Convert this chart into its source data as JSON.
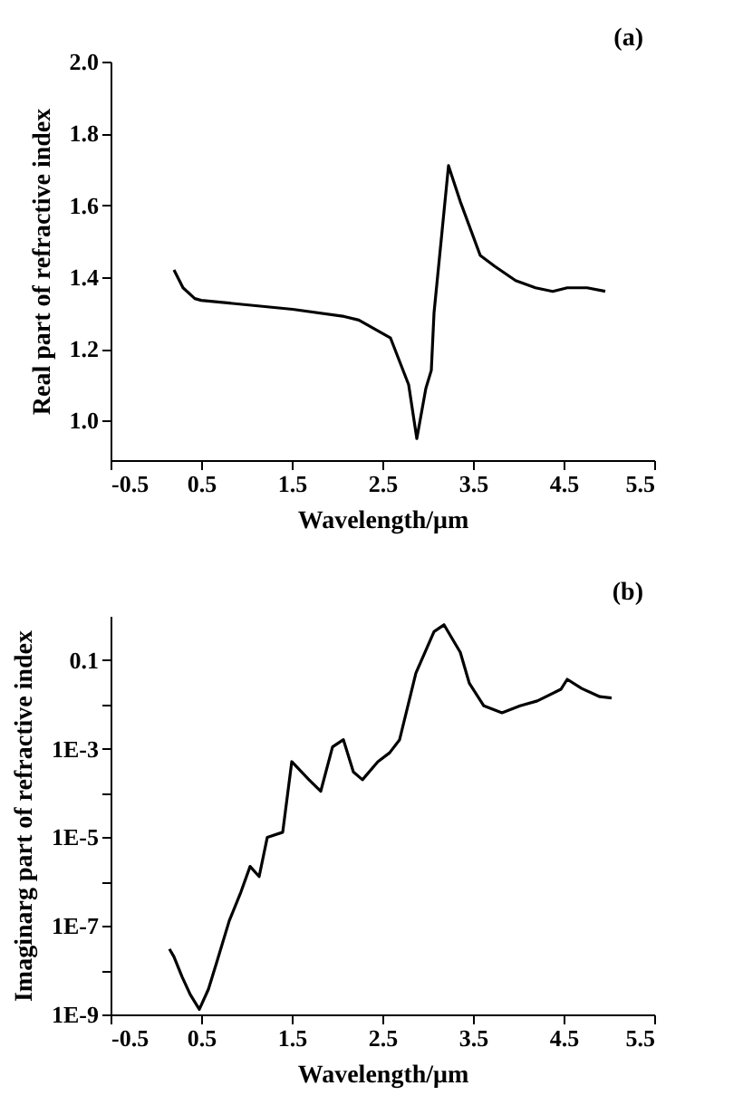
{
  "chart_data": [
    {
      "type": "line",
      "xlabel": "Wavelength/μm",
      "ylabel": "Real part of refractive index",
      "annotations": [
        "(a)"
      ],
      "grid": false,
      "marker": "none",
      "line_style": "solid",
      "x": [
        0.2,
        0.3,
        0.43,
        0.5,
        1.51,
        2.08,
        2.24,
        2.59,
        2.79,
        2.88,
        2.98,
        3.04,
        3.07,
        3.23,
        3.36,
        3.58,
        3.74,
        3.97,
        4.19,
        4.38,
        4.54,
        4.76,
        4.96
      ],
      "series": [
        {
          "color": "#000000",
          "values": [
            1.42,
            1.37,
            1.34,
            1.335,
            1.31,
            1.29,
            1.28,
            1.23,
            1.1,
            0.95,
            1.09,
            1.14,
            1.3,
            1.71,
            1.61,
            1.46,
            1.43,
            1.39,
            1.37,
            1.36,
            1.37,
            1.37,
            1.36
          ]
        }
      ],
      "xlim": [
        -0.5,
        5.5
      ],
      "xticks": [
        -0.5,
        0.5,
        1.5,
        2.5,
        3.5,
        4.5,
        5.5
      ],
      "ylim": [
        0.89,
        2.0
      ],
      "yticks": [
        {
          "value": 1.0,
          "label": "1.0"
        },
        1.2,
        1.4,
        1.6,
        1.8,
        {
          "value": 2.0,
          "label": "2.0"
        }
      ]
    },
    {
      "type": "line",
      "xlabel": "Wavelength/μm",
      "ylabel": "Imaginarg part of refractive index",
      "annotations": [
        "(b)"
      ],
      "grid": false,
      "marker": "none",
      "line_style": "solid",
      "log": "y",
      "x": [
        0.15,
        0.2,
        0.29,
        0.38,
        0.48,
        0.58,
        0.68,
        0.81,
        0.94,
        1.04,
        1.14,
        1.23,
        1.4,
        1.5,
        1.69,
        1.82,
        1.95,
        2.07,
        2.18,
        2.28,
        2.45,
        2.58,
        2.69,
        2.87,
        3.07,
        3.18,
        3.36,
        3.46,
        3.62,
        3.82,
        4.02,
        4.21,
        4.47,
        4.54,
        4.7,
        4.9,
        5.03
      ],
      "series": [
        {
          "color": "#000000",
          "values": [
            3e-08,
            2e-08,
            7e-09,
            2.8e-09,
            1.3e-09,
            3.7e-09,
            1.7e-08,
            1.3e-07,
            5.9e-07,
            2.2e-06,
            1.3e-06,
            1e-05,
            1.3e-05,
            0.00051,
            0.0002,
            0.00011,
            0.0011,
            0.0016,
            0.0003,
            0.0002,
            0.00051,
            0.00081,
            0.0016,
            0.051,
            0.44,
            0.63,
            0.15,
            0.03,
            0.0093,
            0.0065,
            0.0093,
            0.012,
            0.022,
            0.037,
            0.023,
            0.015,
            0.014
          ]
        }
      ],
      "xlim": [
        -0.5,
        5.5
      ],
      "xticks": [
        -0.5,
        0.5,
        1.5,
        2.5,
        3.5,
        4.5,
        5.5
      ],
      "ylim": [
        1e-09,
        1
      ],
      "yticks": [
        {
          "value": 1e-09,
          "label": "1E-9"
        },
        {
          "value": 1e-08,
          "label": null
        },
        {
          "value": 1e-07,
          "label": "1E-7"
        },
        {
          "value": 1e-06,
          "label": null
        },
        {
          "value": 1e-05,
          "label": "1E-5"
        },
        {
          "value": 0.0001,
          "label": null
        },
        {
          "value": 0.001,
          "label": "1E-3"
        },
        {
          "value": 0.01,
          "label": null
        },
        {
          "value": 0.1,
          "label": "0.1"
        }
      ]
    }
  ]
}
